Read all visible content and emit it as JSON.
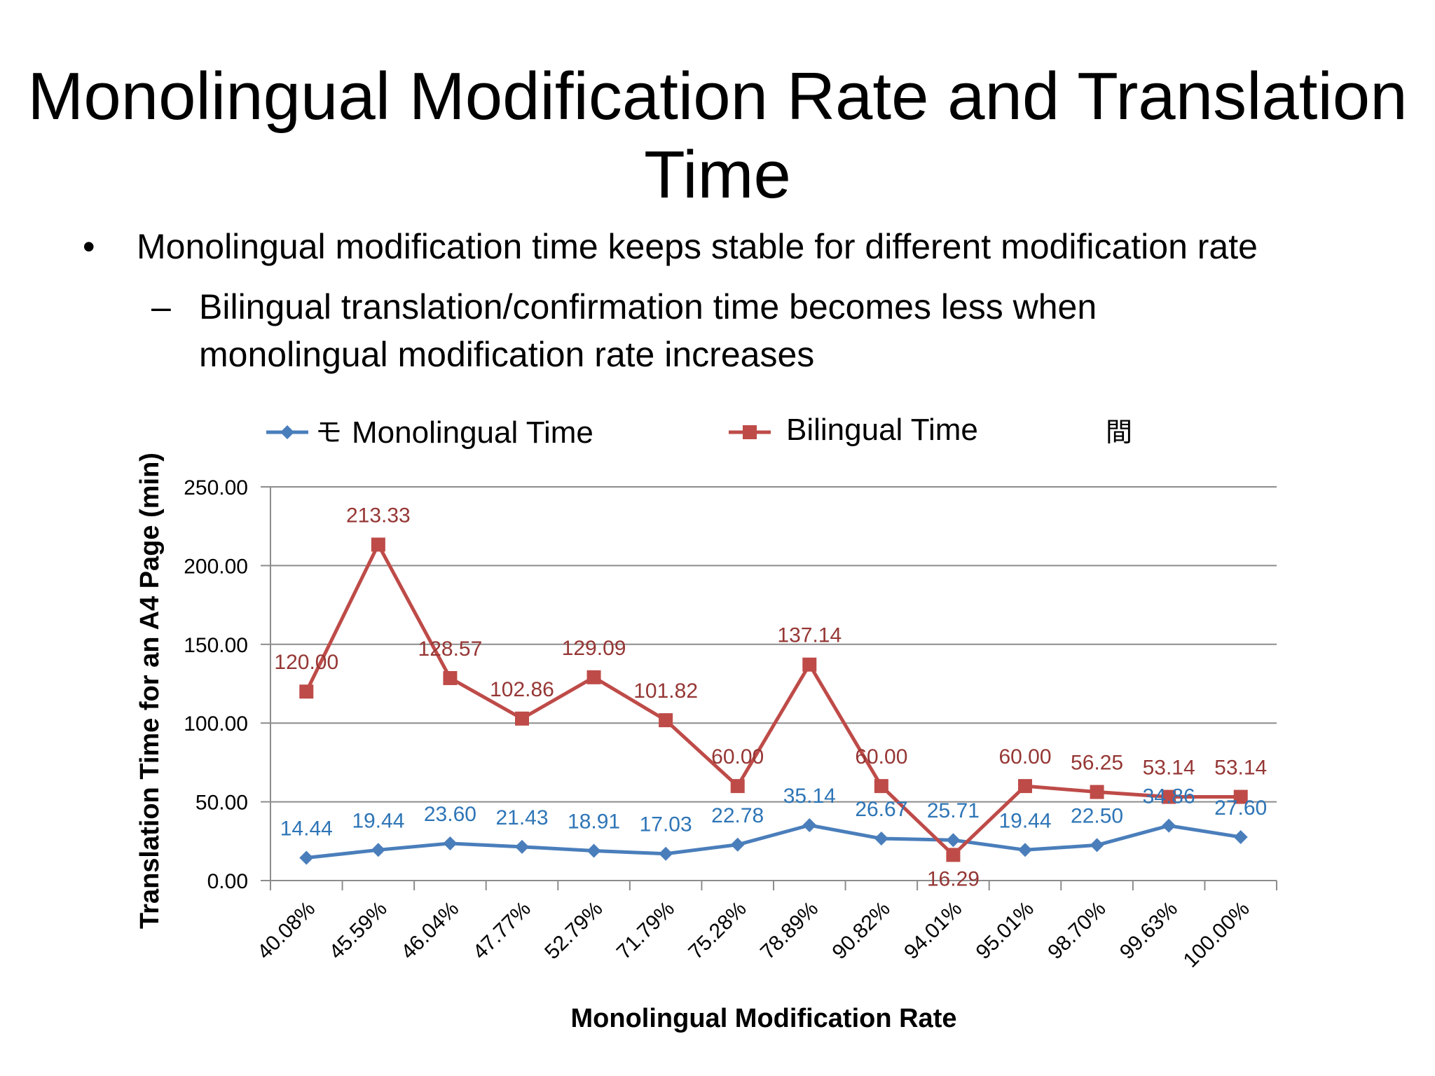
{
  "slide": {
    "title": "Monolingual Modification Rate and Translation Time",
    "bullet_symbol": "•",
    "bullet_text": "Monolingual modification time keeps stable for different modification rate",
    "sub_symbol": "–",
    "sub_text": "Bilingual translation/confirmation time becomes less when monolingual modification rate increases"
  },
  "chart_data": {
    "type": "line",
    "title": "",
    "xlabel": "Monolingual Modification Rate",
    "ylabel": "Translation Time for an A4 Page (min)",
    "ylim": [
      0,
      250
    ],
    "yticks": [
      "0.00",
      "50.00",
      "100.00",
      "150.00",
      "200.00",
      "250.00"
    ],
    "grid": true,
    "legend_position": "top",
    "legend_stray_glyphs": [
      "モ",
      "間"
    ],
    "categories": [
      "40.08%",
      "45.59%",
      "46.04%",
      "47.77%",
      "52.79%",
      "71.79%",
      "75.28%",
      "78.89%",
      "90.82%",
      "94.01%",
      "95.01%",
      "98.70%",
      "99.63%",
      "100.00%"
    ],
    "series": [
      {
        "name": "Monolingual Time",
        "color": "#4a7ebb",
        "label_color": "#2e75b6",
        "marker": "diamond",
        "values": [
          14.44,
          19.44,
          23.6,
          21.43,
          18.91,
          17.03,
          22.78,
          35.14,
          26.67,
          25.71,
          19.44,
          22.5,
          34.86,
          27.6
        ],
        "labels": [
          "14.44",
          "19.44",
          "23.60",
          "21.43",
          "18.91",
          "17.03",
          "22.78",
          "35.14",
          "26.67",
          "25.71",
          "19.44",
          "22.50",
          "34.86",
          "27.60"
        ]
      },
      {
        "name": "Bilingual Time",
        "color": "#be4b48",
        "label_color": "#953735",
        "marker": "square",
        "values": [
          120.0,
          213.33,
          128.57,
          102.86,
          129.09,
          101.82,
          60.0,
          137.14,
          60.0,
          16.29,
          60.0,
          56.25,
          53.14,
          53.14
        ],
        "labels": [
          "120.00",
          "213.33",
          "128.57",
          "102.86",
          "129.09",
          "101.82",
          "60.00",
          "137.14",
          "60.00",
          "16.29",
          "60.00",
          "56.25",
          "53.14",
          "53.14"
        ]
      }
    ]
  }
}
